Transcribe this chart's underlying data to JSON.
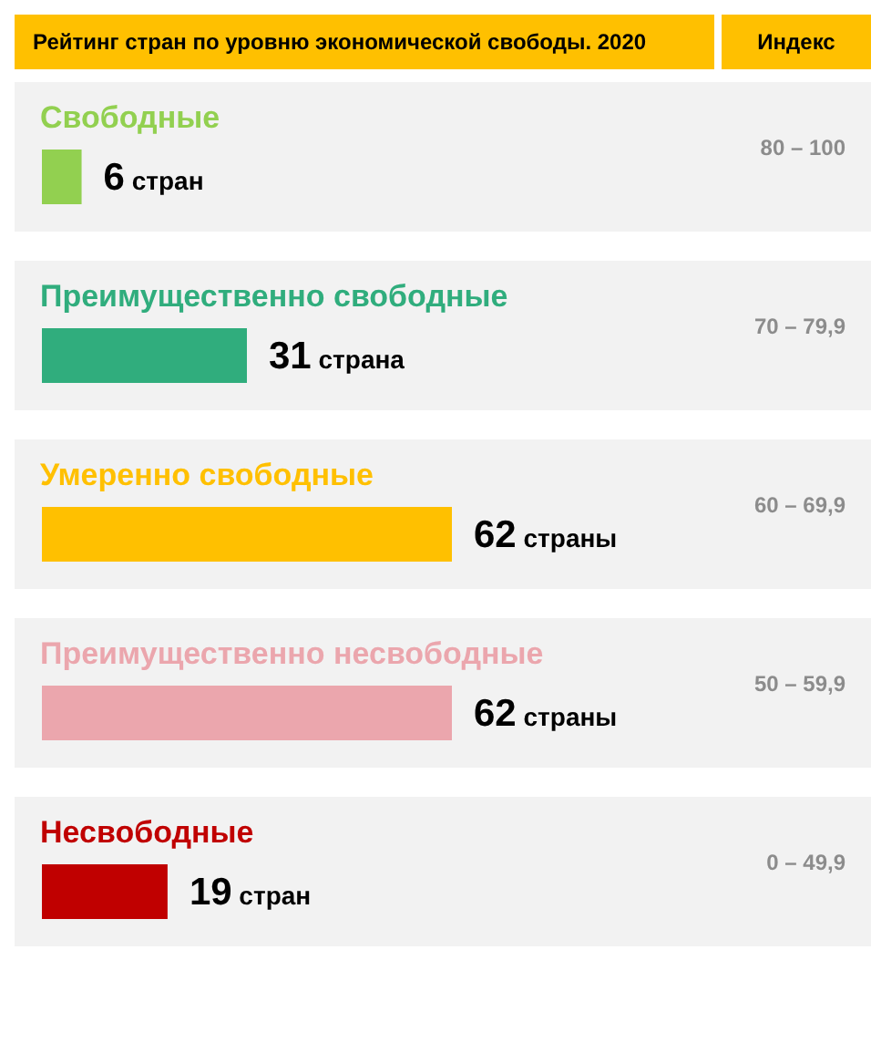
{
  "chart_data": {
    "type": "bar",
    "orientation": "horizontal",
    "title": "Рейтинг стран по уровню экономической свободы. 2020",
    "categories": [
      "Свободные",
      "Преимущественно свободные",
      "Умеренно свободные",
      "Преимущественно несвободные",
      "Несвободные"
    ],
    "values": [
      6,
      31,
      62,
      62,
      19
    ],
    "colors": [
      "#92d050",
      "#30ad7d",
      "#ffc000",
      "#eba6ad",
      "#c00000"
    ],
    "value_labels": [
      "6 стран",
      "31 страна",
      "62 страны",
      "62 страны",
      "19 стран"
    ],
    "tick_labels": "y",
    "annotations": [
      "Индекс",
      "80 – 100",
      "70 – 79,9",
      "60 – 69,9",
      "50 – 59,9",
      "0 – 49,9"
    ]
  }
}
